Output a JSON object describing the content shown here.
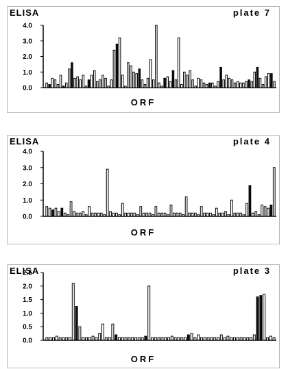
{
  "panels": [
    {
      "label": "ELISA",
      "plate": "plate 7",
      "xlabel": "ORF"
    },
    {
      "label": "ELISA",
      "plate": "plate 4",
      "xlabel": "ORF"
    },
    {
      "label": "ELISA",
      "plate": "plate 3",
      "xlabel": "ORF"
    }
  ],
  "chart_data": [
    {
      "type": "bar",
      "title": "plate 7",
      "ylabel": "ELISA",
      "xlabel": "ORF",
      "ylim": [
        0,
        4.0
      ],
      "yticks": [
        "0.0",
        "1.0",
        "2.0",
        "3.0",
        "4.0"
      ],
      "grid": false,
      "values": [
        0.3,
        0.2,
        0.6,
        0.5,
        0.2,
        0.8,
        0.1,
        0.3,
        1.2,
        1.6,
        0.6,
        0.7,
        0.5,
        0.8,
        0.1,
        0.5,
        0.8,
        1.1,
        0.4,
        0.5,
        0.8,
        0.6,
        0.1,
        0.5,
        2.4,
        2.8,
        3.2,
        0.8,
        0.1,
        1.6,
        1.4,
        1.0,
        0.9,
        1.2,
        0.5,
        0.2,
        0.6,
        1.8,
        0.5,
        4.0,
        0.3,
        0.1,
        0.6,
        0.7,
        0.4,
        1.1,
        0.5,
        3.2,
        0.2,
        1.0,
        0.8,
        1.1,
        0.5,
        0.1,
        0.6,
        0.5,
        0.3,
        0.2,
        0.3,
        0.3,
        0.1,
        0.4,
        1.3,
        0.5,
        0.8,
        0.6,
        0.5,
        0.3,
        0.4,
        0.3,
        0.3,
        0.4,
        0.5,
        0.4,
        1.0,
        1.3,
        0.6,
        0.2,
        0.7,
        0.9,
        0.9,
        0.4
      ],
      "dark_bars": [
        1,
        6,
        9,
        15,
        25,
        33,
        42,
        45,
        58,
        62,
        72,
        75,
        80
      ]
    },
    {
      "type": "bar",
      "title": "plate 4",
      "ylabel": "ELISA",
      "xlabel": "ORF",
      "ylim": [
        0,
        4.0
      ],
      "yticks": [
        "0.0",
        "1.0",
        "2.0",
        "3.0",
        "4.0"
      ],
      "grid": false,
      "values": [
        0.6,
        0.5,
        0.4,
        0.5,
        0.3,
        0.5,
        0.2,
        0.1,
        0.9,
        0.3,
        0.2,
        0.2,
        0.3,
        0.1,
        0.6,
        0.2,
        0.2,
        0.2,
        0.2,
        0.1,
        2.9,
        0.3,
        0.2,
        0.2,
        0.1,
        0.8,
        0.2,
        0.2,
        0.2,
        0.2,
        0.1,
        0.6,
        0.2,
        0.2,
        0.2,
        0.1,
        0.6,
        0.2,
        0.2,
        0.2,
        0.1,
        0.7,
        0.2,
        0.2,
        0.2,
        0.1,
        1.2,
        0.2,
        0.2,
        0.2,
        0.1,
        0.6,
        0.2,
        0.2,
        0.2,
        0.1,
        0.5,
        0.2,
        0.2,
        0.3,
        0.1,
        1.0,
        0.2,
        0.2,
        0.2,
        0.1,
        0.8,
        1.9,
        0.2,
        0.3,
        0.1,
        0.7,
        0.6,
        0.5,
        0.7,
        3.0
      ],
      "dark_bars": [
        2,
        5,
        67,
        74
      ]
    },
    {
      "type": "bar",
      "title": "plate 3",
      "ylabel": "ELISA",
      "xlabel": "ORF",
      "ylim": [
        0,
        2.5
      ],
      "yticks": [
        "0.0",
        "0.5",
        "1.0",
        "1.5",
        "2.0",
        "2.5"
      ],
      "grid": false,
      "values": [
        0.1,
        0.1,
        0.1,
        0.15,
        0.1,
        0.1,
        0.1,
        0.1,
        2.1,
        1.25,
        0.5,
        0.1,
        0.1,
        0.1,
        0.15,
        0.1,
        0.25,
        0.6,
        0.1,
        0.1,
        0.6,
        0.2,
        0.1,
        0.1,
        0.1,
        0.1,
        0.1,
        0.1,
        0.1,
        0.1,
        0.15,
        2.0,
        0.1,
        0.1,
        0.1,
        0.1,
        0.1,
        0.1,
        0.15,
        0.1,
        0.1,
        0.1,
        0.1,
        0.2,
        0.25,
        0.1,
        0.2,
        0.1,
        0.1,
        0.1,
        0.1,
        0.1,
        0.1,
        0.2,
        0.1,
        0.15,
        0.1,
        0.1,
        0.1,
        0.1,
        0.1,
        0.1,
        0.1,
        0.2,
        1.6,
        1.65,
        1.7,
        0.1,
        0.15,
        0.1
      ],
      "dark_bars": [
        9,
        21,
        30,
        43,
        64,
        65
      ]
    }
  ]
}
